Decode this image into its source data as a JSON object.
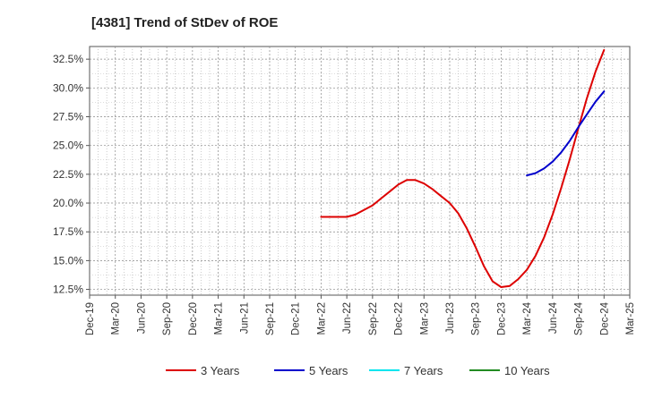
{
  "chart_data": {
    "type": "line",
    "title": "[4381]  Trend of StDev of ROE",
    "xlabel": "",
    "ylabel": "",
    "x_ticks": [
      "Dec-19",
      "Mar-20",
      "Jun-20",
      "Sep-20",
      "Dec-20",
      "Mar-21",
      "Jun-21",
      "Sep-21",
      "Dec-21",
      "Mar-22",
      "Jun-22",
      "Sep-22",
      "Dec-22",
      "Mar-23",
      "Jun-23",
      "Sep-23",
      "Dec-23",
      "Mar-24",
      "Jun-24",
      "Sep-24",
      "Dec-24",
      "Mar-25"
    ],
    "y_ticks": [
      "12.5%",
      "15.0%",
      "17.5%",
      "20.0%",
      "22.5%",
      "25.0%",
      "27.5%",
      "30.0%",
      "32.5%"
    ],
    "ylim": [
      12.0,
      33.6
    ],
    "grid": true,
    "legend_position": "bottom",
    "series": [
      {
        "name": "3 Years",
        "color": "#dd0000",
        "x": [
          "Mar-22",
          "Apr-22",
          "May-22",
          "Jun-22",
          "Jul-22",
          "Aug-22",
          "Sep-22",
          "Oct-22",
          "Nov-22",
          "Dec-22",
          "Jan-23",
          "Feb-23",
          "Mar-23",
          "Apr-23",
          "May-23",
          "Jun-23",
          "Jul-23",
          "Aug-23",
          "Sep-23",
          "Oct-23",
          "Nov-23",
          "Dec-23",
          "Jan-24",
          "Feb-24",
          "Mar-24",
          "Apr-24",
          "May-24",
          "Jun-24",
          "Jul-24",
          "Aug-24",
          "Sep-24",
          "Oct-24",
          "Nov-24",
          "Dec-24"
        ],
        "values": [
          18.8,
          18.8,
          18.8,
          18.8,
          19.0,
          19.4,
          19.8,
          20.4,
          21.0,
          21.6,
          22.0,
          22.0,
          21.7,
          21.2,
          20.6,
          20.0,
          19.1,
          17.8,
          16.2,
          14.5,
          13.2,
          12.7,
          12.8,
          13.4,
          14.2,
          15.4,
          17.0,
          19.0,
          21.3,
          23.8,
          26.5,
          29.1,
          31.4,
          33.3
        ]
      },
      {
        "name": "5 Years",
        "color": "#0000cc",
        "x": [
          "Mar-24",
          "Apr-24",
          "May-24",
          "Jun-24",
          "Jul-24",
          "Aug-24",
          "Sep-24",
          "Oct-24",
          "Nov-24",
          "Dec-24"
        ],
        "values": [
          22.4,
          22.6,
          23.0,
          23.6,
          24.4,
          25.4,
          26.6,
          27.7,
          28.8,
          29.7
        ]
      },
      {
        "name": "7 Years",
        "color": "#00e5ee",
        "x": [],
        "values": []
      },
      {
        "name": "10 Years",
        "color": "#228b22",
        "x": [],
        "values": []
      }
    ]
  }
}
